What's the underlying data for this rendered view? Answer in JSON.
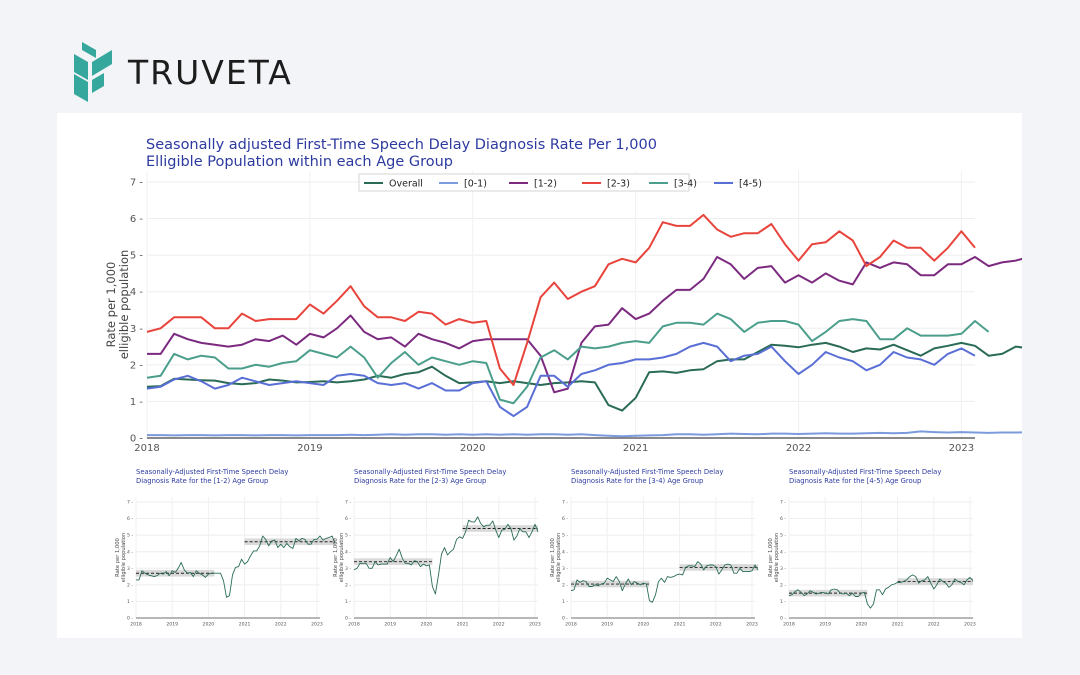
{
  "brand": {
    "name": "TRUVETA",
    "color": "#35a79c"
  },
  "chart_data": [
    {
      "type": "line",
      "title_lines": [
        "Seasonally adjusted First-Time Speech Delay Diagnosis Rate Per 1,000",
        " Elligible Population within each Age Group"
      ],
      "ylabel_lines": [
        "Rate per 1,000",
        "elligible population"
      ],
      "xlabel": "",
      "ylim": [
        0,
        7.3
      ],
      "yticks": [
        0,
        1,
        2,
        3,
        4,
        5,
        6,
        7
      ],
      "xticks": [
        "2018",
        "2019",
        "2020",
        "2021",
        "2022",
        "2023"
      ],
      "x_start": "2018-01",
      "x_end": "2023-02",
      "grid": true,
      "legend_position": "top-center",
      "series": [
        {
          "name": "Overall",
          "color": "#2a6b57",
          "values": [
            1.4,
            1.42,
            1.62,
            1.6,
            1.58,
            1.57,
            1.5,
            1.47,
            1.5,
            1.6,
            1.57,
            1.52,
            1.53,
            1.55,
            1.52,
            1.55,
            1.6,
            1.7,
            1.65,
            1.75,
            1.8,
            1.95,
            1.7,
            1.5,
            1.52,
            1.55,
            1.5,
            1.55,
            1.5,
            1.45,
            1.5,
            1.52,
            1.55,
            1.52,
            0.9,
            0.75,
            1.1,
            1.8,
            1.82,
            1.78,
            1.85,
            1.88,
            2.1,
            2.15,
            2.15,
            2.35,
            2.55,
            2.52,
            2.48,
            2.55,
            2.6,
            2.5,
            2.35,
            2.45,
            2.42,
            2.55,
            2.4,
            2.25,
            2.45,
            2.52,
            2.6,
            2.52,
            2.25,
            2.3,
            2.5,
            2.45,
            2.5,
            2.4,
            2.35,
            2.45,
            2.65,
            2.45
          ]
        },
        {
          "name": "[0-1)",
          "color": "#7b9bdc",
          "values": [
            0.08,
            0.08,
            0.07,
            0.08,
            0.08,
            0.07,
            0.08,
            0.08,
            0.07,
            0.08,
            0.08,
            0.07,
            0.08,
            0.08,
            0.08,
            0.09,
            0.08,
            0.09,
            0.1,
            0.09,
            0.1,
            0.1,
            0.09,
            0.1,
            0.09,
            0.1,
            0.09,
            0.1,
            0.09,
            0.1,
            0.1,
            0.09,
            0.1,
            0.08,
            0.06,
            0.05,
            0.06,
            0.07,
            0.08,
            0.1,
            0.1,
            0.09,
            0.1,
            0.12,
            0.11,
            0.1,
            0.12,
            0.12,
            0.11,
            0.12,
            0.13,
            0.12,
            0.12,
            0.13,
            0.14,
            0.13,
            0.14,
            0.18,
            0.16,
            0.15,
            0.16,
            0.15,
            0.14,
            0.15,
            0.15,
            0.16,
            0.15,
            0.16,
            0.15,
            0.14,
            0.16,
            0.14
          ]
        },
        {
          "name": "[1-2)",
          "color": "#7b2a80",
          "values": [
            2.3,
            2.3,
            2.85,
            2.7,
            2.6,
            2.55,
            2.5,
            2.55,
            2.7,
            2.65,
            2.8,
            2.55,
            2.85,
            2.75,
            3.0,
            3.35,
            2.9,
            2.7,
            2.75,
            2.5,
            2.85,
            2.7,
            2.6,
            2.45,
            2.65,
            2.7,
            2.7,
            2.7,
            2.7,
            2.25,
            1.25,
            1.35,
            2.6,
            3.05,
            3.1,
            3.55,
            3.25,
            3.4,
            3.75,
            4.05,
            4.05,
            4.35,
            4.95,
            4.75,
            4.35,
            4.65,
            4.7,
            4.25,
            4.45,
            4.25,
            4.5,
            4.3,
            4.2,
            4.8,
            4.65,
            4.8,
            4.75,
            4.45,
            4.45,
            4.75,
            4.75,
            4.95,
            4.7,
            4.8,
            4.85,
            4.95,
            4.5
          ]
        },
        {
          "name": "[2-3)",
          "color": "#e8443c",
          "values": [
            2.9,
            3.0,
            3.3,
            3.3,
            3.3,
            3.0,
            3.0,
            3.4,
            3.2,
            3.25,
            3.25,
            3.25,
            3.65,
            3.4,
            3.75,
            4.15,
            3.6,
            3.3,
            3.3,
            3.2,
            3.45,
            3.4,
            3.1,
            3.25,
            3.15,
            3.2,
            1.9,
            1.45,
            2.6,
            3.85,
            4.25,
            3.8,
            4.0,
            4.15,
            4.75,
            4.9,
            4.8,
            5.2,
            5.9,
            5.8,
            5.8,
            6.1,
            5.7,
            5.5,
            5.6,
            5.6,
            5.85,
            5.3,
            4.85,
            5.3,
            5.35,
            5.65,
            5.4,
            4.7,
            4.95,
            5.4,
            5.2,
            5.2,
            4.85,
            5.2,
            5.65,
            5.2
          ]
        },
        {
          "name": "[3-4)",
          "color": "#4a9e8b",
          "values": [
            1.65,
            1.7,
            2.3,
            2.15,
            2.25,
            2.2,
            1.9,
            1.9,
            2.0,
            1.95,
            2.05,
            2.1,
            2.4,
            2.3,
            2.2,
            2.5,
            2.2,
            1.65,
            2.05,
            2.35,
            2.0,
            2.2,
            2.1,
            2.0,
            2.1,
            2.05,
            1.05,
            0.95,
            1.4,
            2.2,
            2.4,
            2.15,
            2.5,
            2.45,
            2.5,
            2.6,
            2.65,
            2.6,
            3.05,
            3.15,
            3.15,
            3.1,
            3.4,
            3.25,
            2.9,
            3.15,
            3.2,
            3.2,
            3.1,
            2.65,
            2.9,
            3.2,
            3.25,
            3.2,
            2.7,
            2.7,
            3.0,
            2.8,
            2.8,
            2.8,
            2.85,
            3.2,
            2.9
          ]
        },
        {
          "name": "[4-5)",
          "color": "#5a6fd6",
          "values": [
            1.35,
            1.4,
            1.6,
            1.7,
            1.55,
            1.35,
            1.45,
            1.65,
            1.55,
            1.45,
            1.5,
            1.55,
            1.5,
            1.45,
            1.7,
            1.75,
            1.7,
            1.5,
            1.45,
            1.5,
            1.35,
            1.5,
            1.3,
            1.3,
            1.5,
            1.55,
            0.85,
            0.6,
            0.85,
            1.7,
            1.7,
            1.4,
            1.75,
            1.85,
            2.0,
            2.05,
            2.15,
            2.15,
            2.2,
            2.3,
            2.5,
            2.6,
            2.5,
            2.1,
            2.25,
            2.3,
            2.5,
            2.1,
            1.75,
            2.0,
            2.35,
            2.2,
            2.1,
            1.85,
            2.0,
            2.35,
            2.2,
            2.15,
            2.0,
            2.3,
            2.45,
            2.25
          ]
        }
      ]
    },
    {
      "type": "line",
      "title_lines": [
        "Seasonally-Adjusted First-Time Speech Delay",
        " Diagnosis Rate for the [1-2) Age Group"
      ],
      "ylabel_lines": [
        "Rate per 1,000",
        "elligible population"
      ],
      "ylim": [
        0,
        7.3
      ],
      "yticks": [
        0,
        1,
        2,
        3,
        4,
        5,
        6,
        7
      ],
      "xticks": [
        "2018",
        "2019",
        "2020",
        "2021",
        "2022",
        "2023"
      ],
      "color": "#2a6b57",
      "pre_mean": 2.7,
      "post_mean": 4.6,
      "values_ref": "[1-2)"
    },
    {
      "type": "line",
      "title_lines": [
        "Seasonally-Adjusted First-Time Speech Delay",
        " Diagnosis Rate for the [2-3) Age Group"
      ],
      "ylabel_lines": [
        "Rate per 1,000",
        "elligible population"
      ],
      "ylim": [
        0,
        7.3
      ],
      "yticks": [
        0,
        1,
        2,
        3,
        4,
        5,
        6,
        7
      ],
      "xticks": [
        "2018",
        "2019",
        "2020",
        "2021",
        "2022",
        "2023"
      ],
      "color": "#2a6b57",
      "pre_mean": 3.4,
      "post_mean": 5.4,
      "values_ref": "[2-3)"
    },
    {
      "type": "line",
      "title_lines": [
        "Seasonally-Adjusted First-Time Speech Delay",
        " Diagnosis Rate for the [3-4) Age Group"
      ],
      "ylabel_lines": [
        "Rate per 1,000",
        "elligible population"
      ],
      "ylim": [
        0,
        7.3
      ],
      "yticks": [
        0,
        1,
        2,
        3,
        4,
        5,
        6,
        7
      ],
      "xticks": [
        "2018",
        "2019",
        "2020",
        "2021",
        "2022",
        "2023"
      ],
      "color": "#2a6b57",
      "pre_mean": 2.05,
      "post_mean": 3.05,
      "values_ref": "[3-4)"
    },
    {
      "type": "line",
      "title_lines": [
        "Seasonally-Adjusted First-Time Speech Delay",
        " Diagnosis Rate for the [4-5) Age Group"
      ],
      "ylabel_lines": [
        "Rate per 1,000",
        "elligible population"
      ],
      "ylim": [
        0,
        7.3
      ],
      "yticks": [
        0,
        1,
        2,
        3,
        4,
        5,
        6,
        7
      ],
      "xticks": [
        "2018",
        "2019",
        "2020",
        "2021",
        "2022",
        "2023"
      ],
      "color": "#2a6b57",
      "pre_mean": 1.5,
      "post_mean": 2.2,
      "values_ref": "[4-5)"
    }
  ]
}
